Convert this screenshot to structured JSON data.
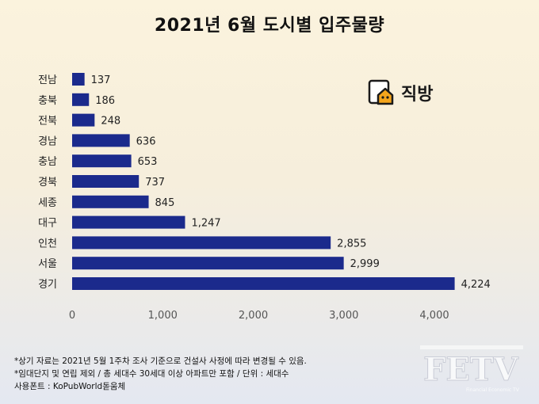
{
  "header": {
    "title": "2021년 6월 도시별 입주물량"
  },
  "logo": {
    "text": "직방"
  },
  "notes": [
    "*상기 자료는 2021년 5월 1주차 조사 기준으로 건설사 사정에 따라 변경될 수 있음.",
    "*임대단지 및 연립 제외 / 총 세대수 30세대 이상 아파트만 포함 / 단위 : 세대수",
    "사용폰트 : KoPubWorld돋움체"
  ],
  "watermark": {
    "text": "FETV",
    "subtext": "Financial Economic TV"
  },
  "colors": {
    "bar": "#1b2a8c",
    "text": "#222222",
    "axis": "#555555"
  },
  "chart_data": {
    "type": "bar",
    "orientation": "horizontal",
    "categories": [
      "전남",
      "충북",
      "전북",
      "경남",
      "충남",
      "경북",
      "세종",
      "대구",
      "인천",
      "서울",
      "경기"
    ],
    "values": [
      137,
      186,
      248,
      636,
      653,
      737,
      845,
      1247,
      2855,
      2999,
      4224
    ],
    "value_labels": [
      "137",
      "186",
      "248",
      "636",
      "653",
      "737",
      "845",
      "1,247",
      "2,855",
      "2,999",
      "4,224"
    ],
    "xlim": [
      0,
      4224
    ],
    "xticks": [
      0,
      1000,
      2000,
      3000,
      4000
    ],
    "xtick_labels": [
      "0",
      "1,000",
      "2,000",
      "3,000",
      "4,000"
    ],
    "grid": false,
    "legend": "none"
  }
}
